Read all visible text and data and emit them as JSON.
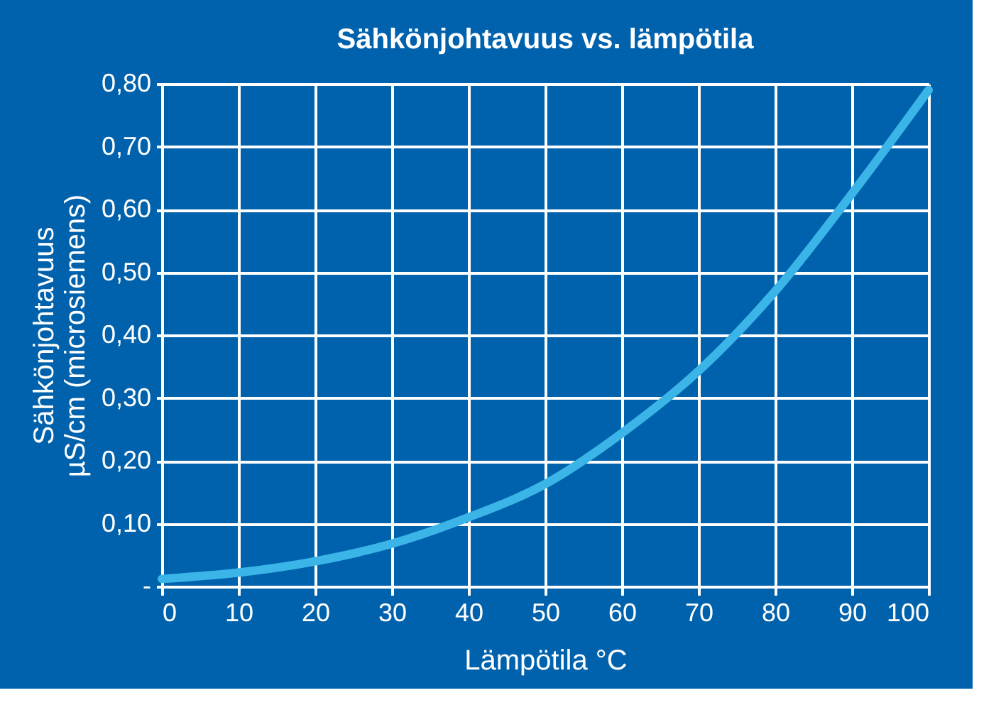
{
  "chart_data": {
    "type": "line",
    "title": "Sähkönjohtavuus vs. lämpötila",
    "xlabel": "Lämpötila °C",
    "ylabel": "Sähkönjohtavuus\nµS/cm (microsiemens)",
    "x": [
      0,
      10,
      20,
      30,
      40,
      50,
      60,
      70,
      80,
      90,
      100
    ],
    "series": [
      {
        "color": "#3bb5e8",
        "values": [
          0.012,
          0.022,
          0.04,
          0.068,
          0.11,
          0.163,
          0.244,
          0.343,
          0.47,
          0.625,
          0.79
        ]
      }
    ],
    "xlim": [
      0,
      100
    ],
    "xticks": [
      0,
      10,
      20,
      30,
      40,
      50,
      60,
      70,
      80,
      90,
      100
    ],
    "ylim": [
      0,
      0.8
    ],
    "yticks": [
      {
        "value": 0,
        "label": "-"
      },
      {
        "value": 0.1,
        "label": "0,10"
      },
      {
        "value": 0.2,
        "label": "0,20"
      },
      {
        "value": 0.3,
        "label": "0,30"
      },
      {
        "value": 0.4,
        "label": "0,40"
      },
      {
        "value": 0.5,
        "label": "0,50"
      },
      {
        "value": 0.6,
        "label": "0,60"
      },
      {
        "value": 0.7,
        "label": "0,70"
      },
      {
        "value": 0.8,
        "label": "0,80"
      }
    ],
    "grid": true,
    "marker": "none",
    "line_style": "solid"
  }
}
